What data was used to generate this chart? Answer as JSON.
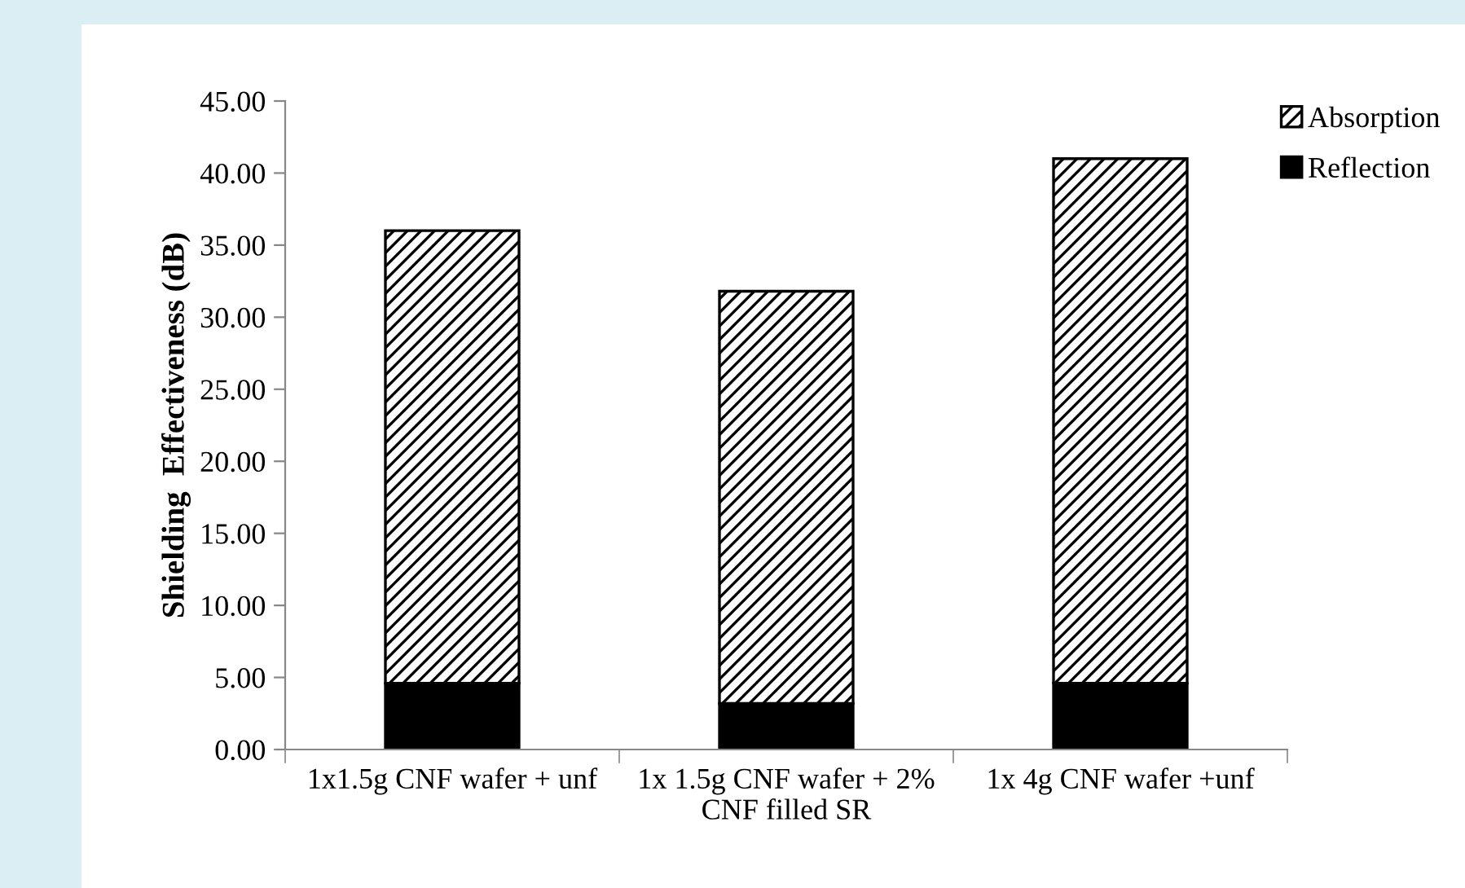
{
  "chart_data": {
    "type": "bar",
    "stacked": true,
    "ylabel": "Shielding  Effectiveness (dB)",
    "categories": [
      "1x1.5g CNF wafer + unf",
      "1x 1.5g CNF wafer + 2% CNF filled SR",
      "1x 4g CNF wafer +unf"
    ],
    "series": [
      {
        "name": "Reflection",
        "color": "#000000",
        "values": [
          4.6,
          3.2,
          4.6
        ]
      },
      {
        "name": "Absorption",
        "color": "#000000",
        "values": [
          31.4,
          28.6,
          36.4
        ]
      }
    ],
    "ylim": [
      0,
      45
    ],
    "yticks": [
      {
        "value": 0,
        "label": "0.00"
      },
      {
        "value": 5,
        "label": "5.00"
      },
      {
        "value": 10,
        "label": "10.00"
      },
      {
        "value": 15,
        "label": "15.00"
      },
      {
        "value": 20,
        "label": "20.00"
      },
      {
        "value": 25,
        "label": "25.00"
      },
      {
        "value": 30,
        "label": "30.00"
      },
      {
        "value": 35,
        "label": "35.00"
      },
      {
        "value": 40,
        "label": "40.00"
      },
      {
        "value": 45,
        "label": "45.00"
      }
    ],
    "grid": false,
    "legend": "top right"
  }
}
